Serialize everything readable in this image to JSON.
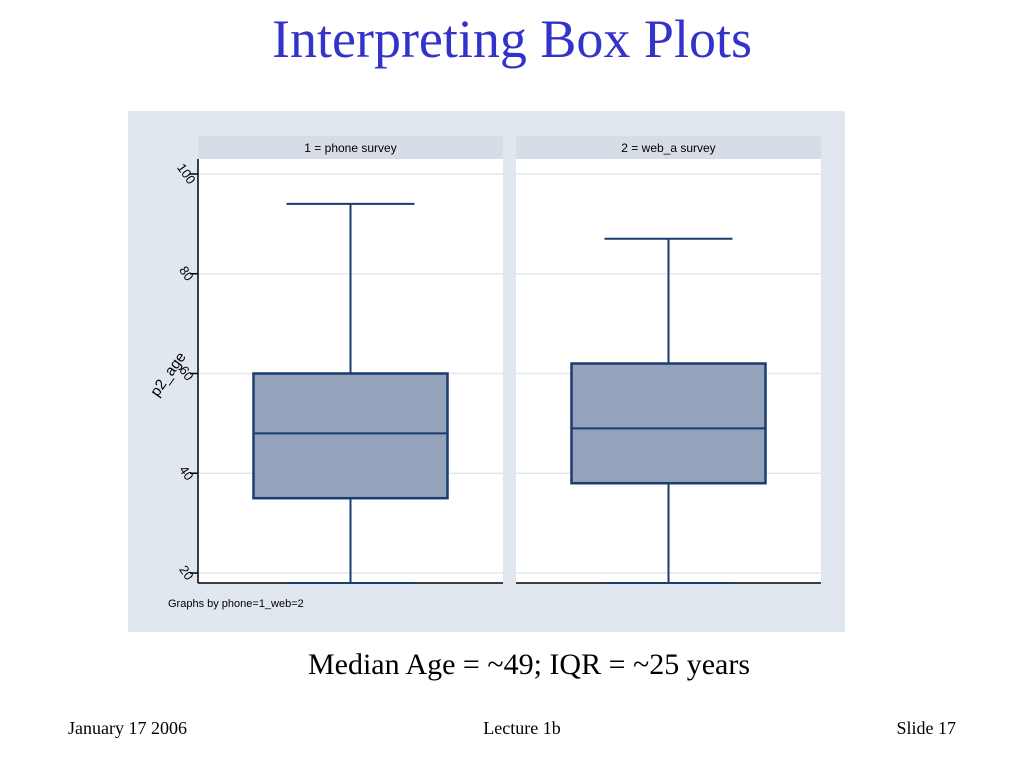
{
  "slide": {
    "title": "Interpreting Box Plots",
    "caption": "Median Age = ~49; IQR = ~25 years",
    "footer_left": "January 17 2006",
    "footer_center": "Lecture 1b",
    "footer_right": "Slide 17"
  },
  "colors": {
    "title": "#3333cc",
    "panel_bg": "#e1e7ef",
    "plot_bg": "#ffffff",
    "strip_bg": "#d7dde6",
    "box_fill": "#94a2bb",
    "box_stroke": "#1a3c6e",
    "grid": "#e1e7ef"
  },
  "chart_data": {
    "type": "boxplot",
    "ylabel": "p2_age",
    "ylim": [
      18,
      103
    ],
    "yticks": [
      20,
      40,
      60,
      80,
      100
    ],
    "grid": true,
    "note": "Graphs by phone=1_web=2",
    "panels": [
      {
        "label": "1 = phone survey",
        "whisker_low": 18,
        "q1": 35,
        "median": 48,
        "q3": 60,
        "whisker_high": 94
      },
      {
        "label": "2 = web_a survey",
        "whisker_low": 18,
        "q1": 38,
        "median": 49,
        "q3": 62,
        "whisker_high": 87
      }
    ]
  }
}
